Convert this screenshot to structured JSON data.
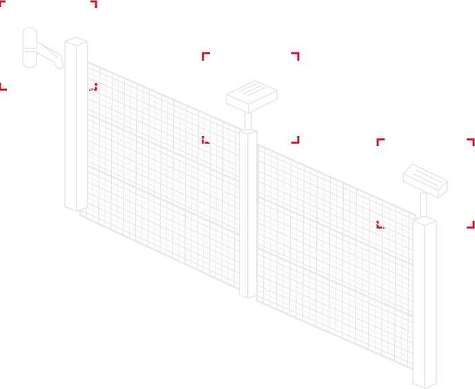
{
  "colors": {
    "background": "#ffffff",
    "line": "#e9e9ea",
    "line_light": "#f2f2f3",
    "focus_bracket": "#c4172e"
  },
  "focus_frames": [
    {
      "id": "swing-motor",
      "icon": "focus-bracket-icon"
    },
    {
      "id": "photocell-center",
      "icon": "focus-bracket-icon"
    },
    {
      "id": "photocell-right",
      "icon": "focus-bracket-icon"
    }
  ],
  "components": [
    {
      "id": "swing-gate-operator",
      "icon": "gate-operator-icon"
    },
    {
      "id": "left-gate-post",
      "icon": "post-icon"
    },
    {
      "id": "left-gate-leaf",
      "icon": "mesh-panel-icon"
    },
    {
      "id": "center-gate-post",
      "icon": "post-icon"
    },
    {
      "id": "center-flash-lamp",
      "icon": "warning-lamp-icon"
    },
    {
      "id": "right-gate-leaf",
      "icon": "mesh-panel-icon"
    },
    {
      "id": "right-gate-post",
      "icon": "post-icon"
    },
    {
      "id": "right-flash-lamp",
      "icon": "warning-lamp-icon"
    }
  ]
}
